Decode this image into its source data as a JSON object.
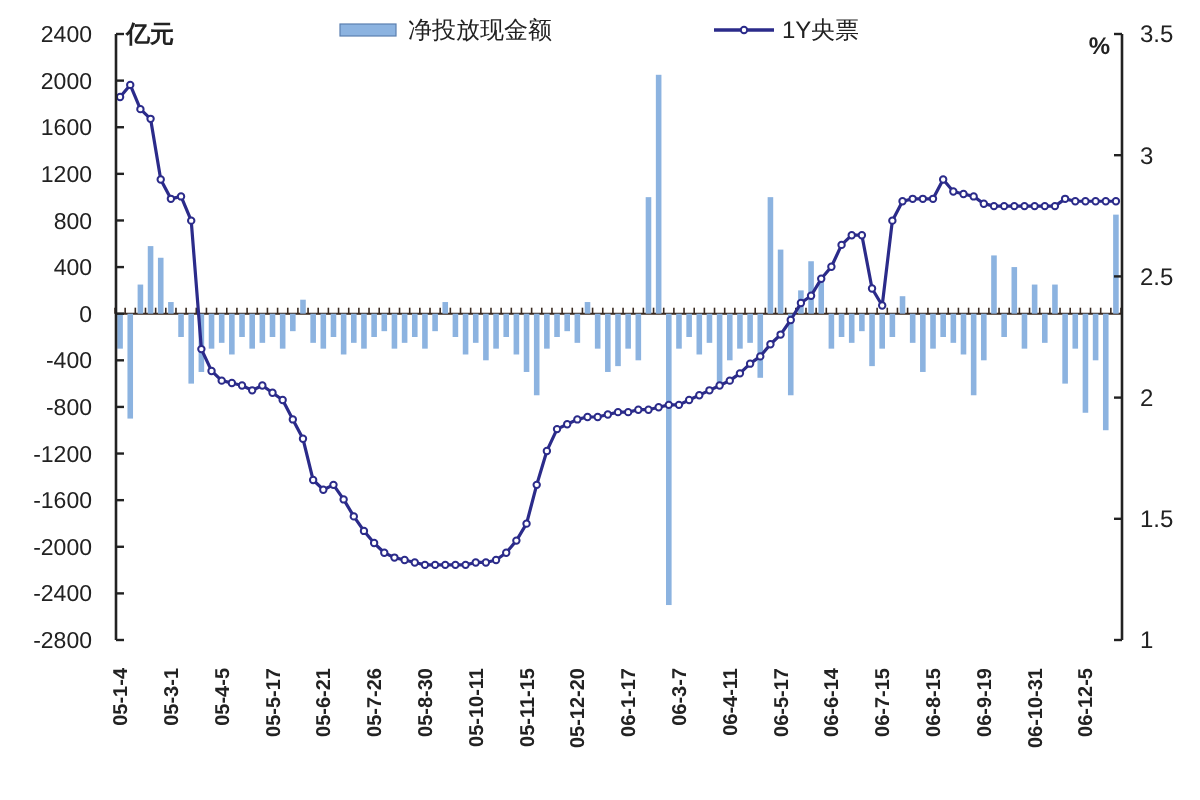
{
  "chart_data": {
    "type": "bar",
    "ylabel": "亿元",
    "y2label": "%",
    "categories": [
      "05-1-4",
      null,
      null,
      null,
      null,
      "05-3-1",
      null,
      null,
      null,
      null,
      "05-4-5",
      null,
      null,
      null,
      null,
      "05-5-17",
      null,
      null,
      null,
      null,
      "05-6-21",
      null,
      null,
      null,
      null,
      "05-7-26",
      null,
      null,
      null,
      null,
      "05-8-30",
      null,
      null,
      null,
      null,
      "05-10-11",
      null,
      null,
      null,
      null,
      "05-11-15",
      null,
      null,
      null,
      null,
      "05-12-20",
      null,
      null,
      null,
      null,
      "06-1-17",
      null,
      null,
      null,
      null,
      "06-3-7",
      null,
      null,
      null,
      null,
      "06-4-11",
      null,
      null,
      null,
      null,
      "06-5-17",
      null,
      null,
      null,
      null,
      "06-6-14",
      null,
      null,
      null,
      null,
      "06-7-15",
      null,
      null,
      null,
      null,
      "06-8-15",
      null,
      null,
      null,
      null,
      "06-9-19",
      null,
      null,
      null,
      null,
      "06-10-31",
      null,
      null,
      null,
      null,
      "06-12-5",
      null,
      null,
      null
    ],
    "series": [
      {
        "name": "净投放现金额",
        "color": "#8cb3e0",
        "values": [
          -300,
          -900,
          250,
          580,
          480,
          100,
          -200,
          -600,
          -500,
          -300,
          -250,
          -350,
          -200,
          -300,
          -250,
          -200,
          -300,
          -150,
          120,
          -250,
          -300,
          -200,
          -350,
          -250,
          -300,
          -200,
          -150,
          -300,
          -250,
          -200,
          -300,
          -150,
          100,
          -200,
          -350,
          -250,
          -400,
          -300,
          -200,
          -350,
          -500,
          -700,
          -300,
          -200,
          -150,
          -250,
          100,
          -300,
          -500,
          -450,
          -300,
          -400,
          1000,
          2050,
          -2500,
          -300,
          -200,
          -350,
          -250,
          -600,
          -400,
          -300,
          -250,
          -550,
          1000,
          550,
          -700,
          200,
          450,
          300,
          -300,
          -200,
          -250,
          -150,
          -450,
          -300,
          -200,
          150,
          -250,
          -500,
          -300,
          -200,
          -250,
          -350,
          -700,
          -400,
          500,
          -200,
          400,
          -300,
          250,
          -250,
          250,
          -600,
          -300,
          -850,
          -400,
          -1000,
          850
        ]
      },
      {
        "name": "1Y央票",
        "type": "line",
        "axis": "y2",
        "color": "#2b2b8a",
        "values": [
          3.24,
          3.29,
          3.19,
          3.15,
          2.9,
          2.82,
          2.83,
          2.73,
          2.2,
          2.11,
          2.07,
          2.06,
          2.05,
          2.03,
          2.05,
          2.02,
          1.99,
          1.91,
          1.83,
          1.66,
          1.62,
          1.64,
          1.58,
          1.51,
          1.45,
          1.4,
          1.36,
          1.34,
          1.33,
          1.32,
          1.31,
          1.31,
          1.31,
          1.31,
          1.31,
          1.32,
          1.32,
          1.33,
          1.36,
          1.41,
          1.48,
          1.64,
          1.78,
          1.87,
          1.89,
          1.91,
          1.92,
          1.92,
          1.93,
          1.94,
          1.94,
          1.95,
          1.95,
          1.96,
          1.97,
          1.97,
          1.99,
          2.01,
          2.03,
          2.05,
          2.07,
          2.1,
          2.14,
          2.17,
          2.22,
          2.26,
          2.32,
          2.39,
          2.42,
          2.49,
          2.54,
          2.63,
          2.67,
          2.67,
          2.45,
          2.38,
          2.73,
          2.81,
          2.82,
          2.82,
          2.82,
          2.9,
          2.85,
          2.84,
          2.83,
          2.8,
          2.79,
          2.79,
          2.79,
          2.79,
          2.79,
          2.79,
          2.79,
          2.82,
          2.81,
          2.81,
          2.81,
          2.81,
          2.81
        ]
      }
    ],
    "ylim": [
      -2800,
      2400
    ],
    "yticks": [
      -2800,
      -2400,
      -2000,
      -1600,
      -1200,
      -800,
      -400,
      0,
      400,
      800,
      1200,
      1600,
      2000,
      2400
    ],
    "y2lim": [
      1,
      3.5
    ],
    "y2ticks": [
      1,
      1.5,
      2,
      2.5,
      3,
      3.5
    ],
    "marker": "circle",
    "legend": "top"
  }
}
